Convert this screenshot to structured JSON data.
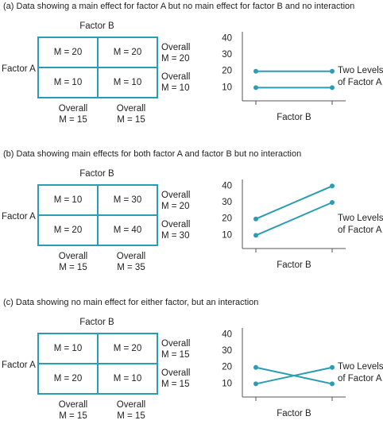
{
  "chart_data": [
    {
      "type": "line",
      "caption": "(a) Data showing a main effect for factor A but no main effect for factor B and no interaction",
      "xlabel": "Factor B",
      "annotation": [
        "Two Levels",
        "of Factor A"
      ],
      "categories": [
        null,
        null
      ],
      "series": [
        {
          "color": "#2b9db3",
          "values": [
            20,
            20
          ]
        },
        {
          "color": "#2b9db3",
          "values": [
            10,
            10
          ]
        }
      ],
      "ylim": [
        2,
        44
      ],
      "yticks": [
        10,
        20,
        30,
        40
      ],
      "table": {
        "col_header": "Factor B",
        "row_header": "Factor A",
        "cells": [
          [
            "M = 20",
            "M = 20"
          ],
          [
            "M = 10",
            "M = 10"
          ]
        ],
        "row_means": [
          [
            "Overall",
            "M = 20"
          ],
          [
            "Overall",
            "M = 10"
          ]
        ],
        "col_means": [
          [
            "Overall",
            "M = 15"
          ],
          [
            "Overall",
            "M = 15"
          ]
        ]
      }
    },
    {
      "type": "line",
      "caption": "(b) Data showing main effects for both factor A and factor B but no interaction",
      "xlabel": "Factor B",
      "annotation": [
        "Two Levels",
        "of Factor A"
      ],
      "categories": [
        null,
        null
      ],
      "series": [
        {
          "color": "#2b9db3",
          "values": [
            20,
            40
          ]
        },
        {
          "color": "#2b9db3",
          "values": [
            10,
            30
          ]
        }
      ],
      "ylim": [
        2,
        44
      ],
      "yticks": [
        10,
        20,
        30,
        40
      ],
      "table": {
        "col_header": "Factor B",
        "row_header": "Factor A",
        "cells": [
          [
            "M = 10",
            "M = 30"
          ],
          [
            "M = 20",
            "M = 40"
          ]
        ],
        "row_means": [
          [
            "Overall",
            "M = 20"
          ],
          [
            "Overall",
            "M = 30"
          ]
        ],
        "col_means": [
          [
            "Overall",
            "M = 15"
          ],
          [
            "Overall",
            "M = 35"
          ]
        ]
      }
    },
    {
      "type": "line",
      "caption": "(c) Data showing no main effect for either factor, but an interaction",
      "xlabel": "Factor B",
      "annotation": [
        "Two Levels",
        "of Factor A"
      ],
      "categories": [
        null,
        null
      ],
      "series": [
        {
          "color": "#2b9db3",
          "values": [
            20,
            10
          ]
        },
        {
          "color": "#2b9db3",
          "values": [
            10,
            20
          ]
        }
      ],
      "ylim": [
        2,
        44
      ],
      "yticks": [
        10,
        20,
        30,
        40
      ],
      "table": {
        "col_header": "Factor B",
        "row_header": "Factor A",
        "cells": [
          [
            "M = 10",
            "M = 20"
          ],
          [
            "M = 20",
            "M = 10"
          ]
        ],
        "row_means": [
          [
            "Overall",
            "M = 15"
          ],
          [
            "Overall",
            "M = 15"
          ]
        ],
        "col_means": [
          [
            "Overall",
            "M = 15"
          ],
          [
            "Overall",
            "M = 15"
          ]
        ]
      }
    }
  ]
}
